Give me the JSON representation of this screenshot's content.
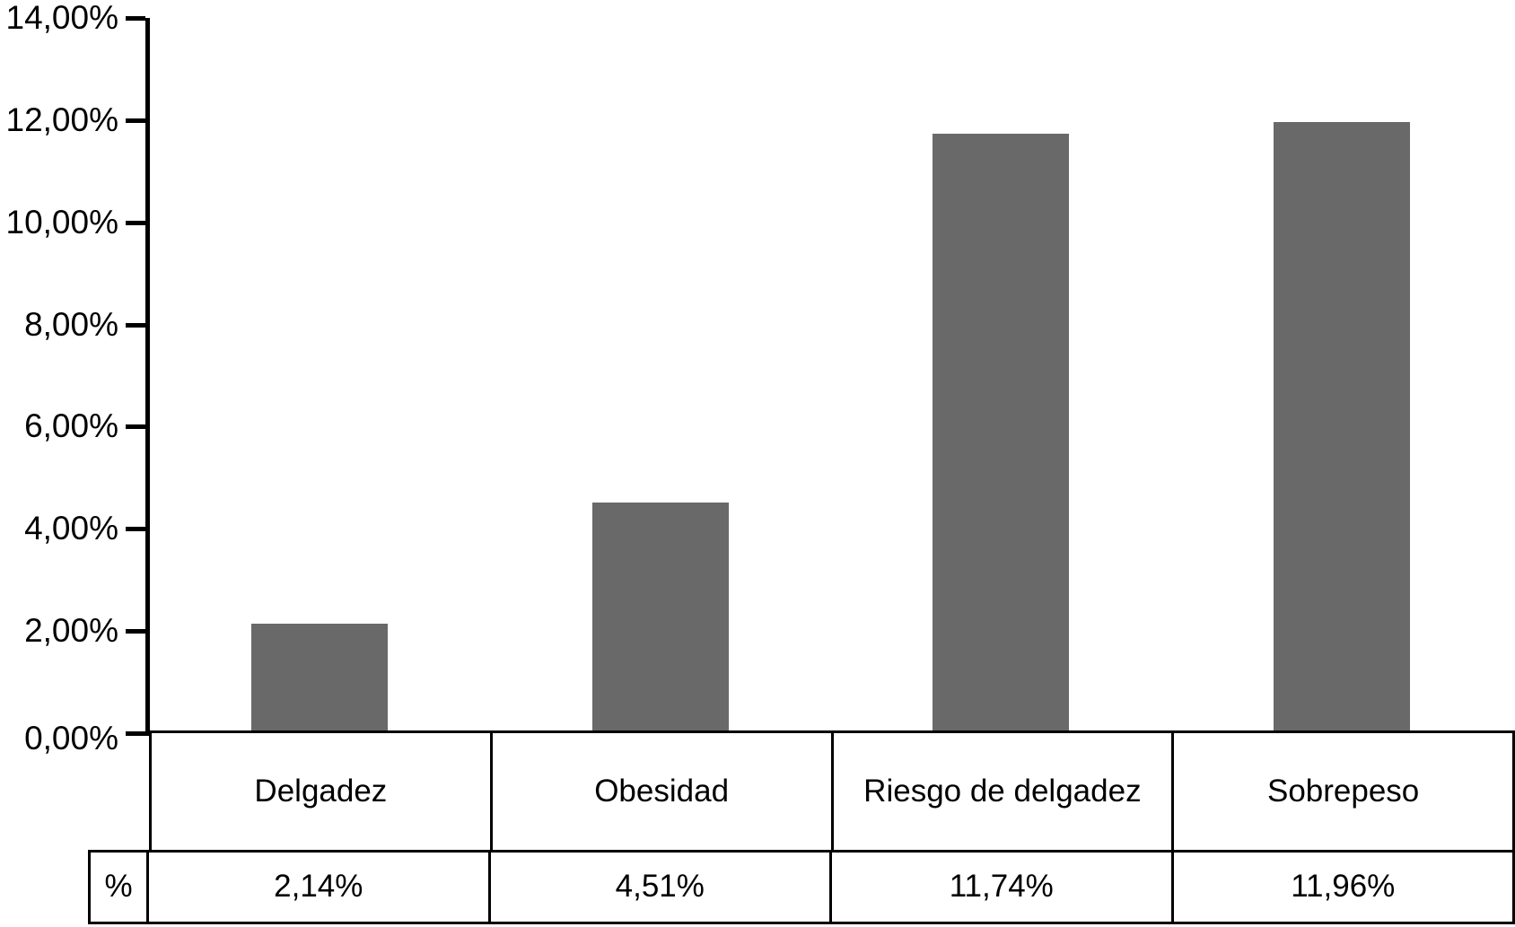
{
  "chart_data": {
    "type": "bar",
    "categories": [
      "Delgadez",
      "Obesidad",
      "Riesgo de delgadez",
      "Sobrepeso"
    ],
    "values": [
      2.14,
      4.51,
      11.74,
      11.96
    ],
    "value_labels": [
      "2,14%",
      "4,51%",
      "11,74%",
      "11,96%"
    ],
    "row_header": "%",
    "y_ticks": [
      {
        "value": 0,
        "label": "0,00%"
      },
      {
        "value": 2,
        "label": "2,00%"
      },
      {
        "value": 4,
        "label": "4,00%"
      },
      {
        "value": 6,
        "label": "6,00%"
      },
      {
        "value": 8,
        "label": "8,00%"
      },
      {
        "value": 10,
        "label": "10,00%"
      },
      {
        "value": 12,
        "label": "12,00%"
      },
      {
        "value": 14,
        "label": "14,00%"
      }
    ],
    "ylim": [
      0,
      14
    ],
    "bar_color": "#696969",
    "axis_color": "#000000",
    "grid": false,
    "legend": "none"
  }
}
